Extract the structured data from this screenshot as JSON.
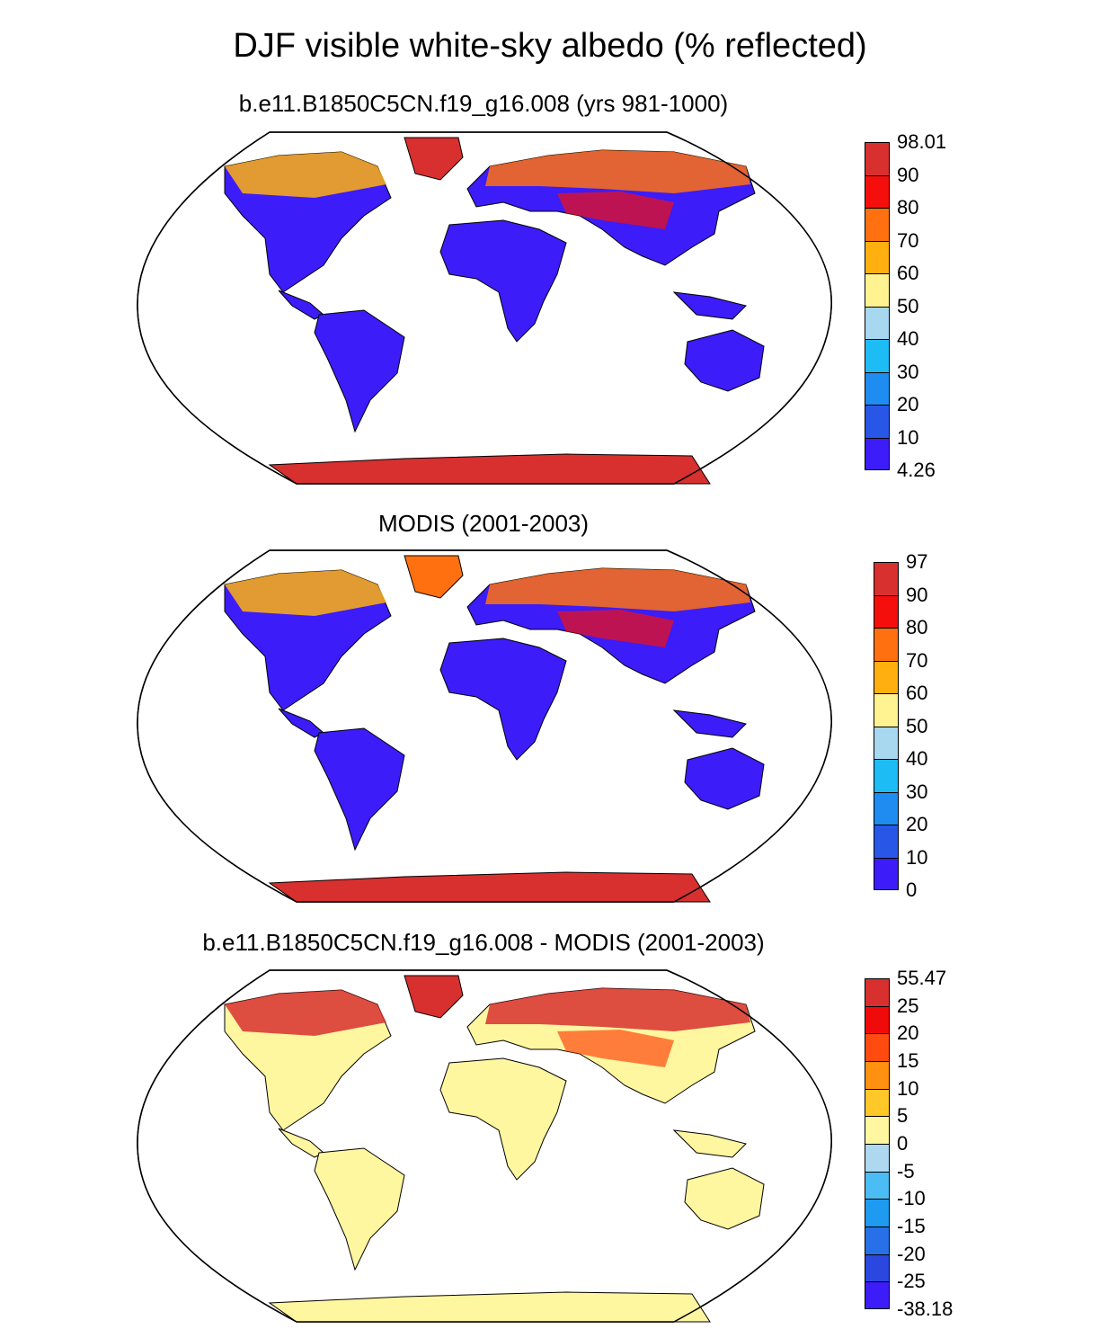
{
  "figure": {
    "title": "DJF visible white-sky albedo (% reflected)"
  },
  "panels": [
    {
      "title": "b.e11.B1850C5CN.f19_g16.008 (yrs 981-1000)",
      "colorbar": {
        "labels": [
          "98.01",
          "90",
          "80",
          "70",
          "60",
          "50",
          "40",
          "30",
          "20",
          "10",
          "4.26"
        ],
        "colors": [
          "#d7302f",
          "#f50f0c",
          "#ff7010",
          "#ffb010",
          "#fff290",
          "#a8d8f0",
          "#1ebcf4",
          "#1e8cf0",
          "#2857e8",
          "#3c1cf8"
        ]
      }
    },
    {
      "title": "MODIS (2001-2003)",
      "colorbar": {
        "labels": [
          "97",
          "90",
          "80",
          "70",
          "60",
          "50",
          "40",
          "30",
          "20",
          "10",
          "0"
        ],
        "colors": [
          "#d7302f",
          "#f50f0c",
          "#ff7010",
          "#ffb010",
          "#fff290",
          "#a8d8f0",
          "#1ebcf4",
          "#1e8cf0",
          "#2857e8",
          "#3c1cf8"
        ]
      }
    },
    {
      "title": "b.e11.B1850C5CN.f19_g16.008 - MODIS (2001-2003)",
      "colorbar": {
        "labels": [
          "55.47",
          "25",
          "20",
          "15",
          "10",
          "5",
          "0",
          "-5",
          "-10",
          "-15",
          "-20",
          "-25",
          "-38.18"
        ],
        "colors": [
          "#d7302f",
          "#f00a0a",
          "#ff4a10",
          "#ff9010",
          "#ffc828",
          "#fff6a0",
          "#aed8f0",
          "#4cbcf4",
          "#1e9af0",
          "#2870e8",
          "#2a48e0",
          "#3c1cf8"
        ]
      }
    }
  ],
  "map_colors": {
    "land_base": "#3c1cf8",
    "antarctica": "#d7302f",
    "diff_land": "#fff6a0",
    "ocean": "#ffffff",
    "coast": "#000000"
  }
}
